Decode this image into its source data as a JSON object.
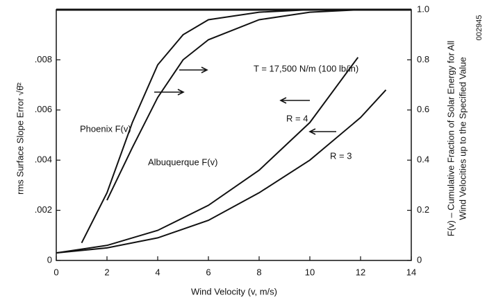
{
  "chart_data": {
    "type": "line",
    "xlabel": "Wind Velocity (v, m/s)",
    "ylabel": "rms Surface Slope Error √θ̄²",
    "y2label": [
      "F(v) – Cumulative Fraction of Solar Energy for All",
      "Wind Velocities up to the Specified Value"
    ],
    "annotation": "T = 17,500 N/m (100 lb/in)",
    "figure_id": "002945",
    "xlim": [
      0,
      14
    ],
    "xticks": [
      0,
      2,
      4,
      6,
      8,
      10,
      12,
      14
    ],
    "ylim": [
      0,
      0.01
    ],
    "yticks": [
      0,
      {
        "value": 0.002,
        "label": ".002"
      },
      {
        "value": 0.004,
        "label": ".004"
      },
      {
        "value": 0.006,
        "label": ".006"
      },
      {
        "value": 0.008,
        "label": ".008"
      }
    ],
    "y2lim": [
      0,
      1
    ],
    "y2ticks": [
      0,
      0.2,
      0.4,
      0.6,
      0.8,
      {
        "value": 1,
        "label": "1.0"
      }
    ],
    "series": [
      {
        "name": "Phoenix F(v)",
        "axis": "y2",
        "color": "#111111",
        "x": [
          1,
          2,
          3,
          4,
          5,
          6,
          8,
          10,
          14
        ],
        "values": [
          0.07,
          0.27,
          0.55,
          0.78,
          0.9,
          0.96,
          0.99,
          1.0,
          1.0
        ]
      },
      {
        "name": "Albuquerque F(v)",
        "axis": "y2",
        "color": "#111111",
        "x": [
          2,
          3,
          4,
          5,
          6,
          8,
          10,
          12,
          14
        ],
        "values": [
          0.24,
          0.45,
          0.65,
          0.8,
          0.88,
          0.96,
          0.99,
          1.0,
          1.0
        ]
      },
      {
        "name": "R = 4",
        "axis": "y",
        "color": "#111111",
        "x": [
          0,
          2,
          4,
          6,
          8,
          10,
          11.9
        ],
        "values": [
          0.0003,
          0.0006,
          0.0012,
          0.0022,
          0.0036,
          0.0055,
          0.0081
        ]
      },
      {
        "name": "R = 3",
        "axis": "y",
        "color": "#111111",
        "x": [
          0,
          2,
          4,
          6,
          8,
          10,
          12,
          13
        ],
        "values": [
          0.0003,
          0.0005,
          0.0009,
          0.0016,
          0.0027,
          0.004,
          0.0057,
          0.0068
        ]
      }
    ]
  }
}
